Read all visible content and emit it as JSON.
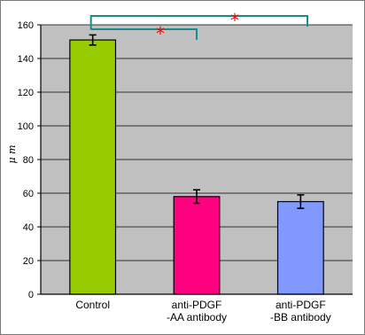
{
  "chart_data": {
    "type": "bar",
    "categories": [
      [
        "Control"
      ],
      [
        "anti-PDGF",
        "-AA antibody"
      ],
      [
        "anti-PDGF",
        "-BB antibody"
      ]
    ],
    "values": [
      151,
      58,
      55
    ],
    "errors": [
      3,
      4,
      4
    ],
    "bar_colors": [
      "#99cc00",
      "#ff0080",
      "#8199ff"
    ],
    "ylabel": "μ m",
    "ylim": [
      0,
      160
    ],
    "yticks": [
      0,
      20,
      40,
      60,
      80,
      100,
      120,
      140,
      160
    ],
    "grid": true,
    "plot_background": "#c0c0c0",
    "significance": [
      {
        "from": 0,
        "to": 1,
        "marker": "*",
        "color": "#1a8c8c",
        "marker_color": "#ff0000"
      },
      {
        "from": 0,
        "to": 2,
        "marker": "*",
        "color": "#1a8c8c",
        "marker_color": "#ff0000"
      }
    ]
  }
}
